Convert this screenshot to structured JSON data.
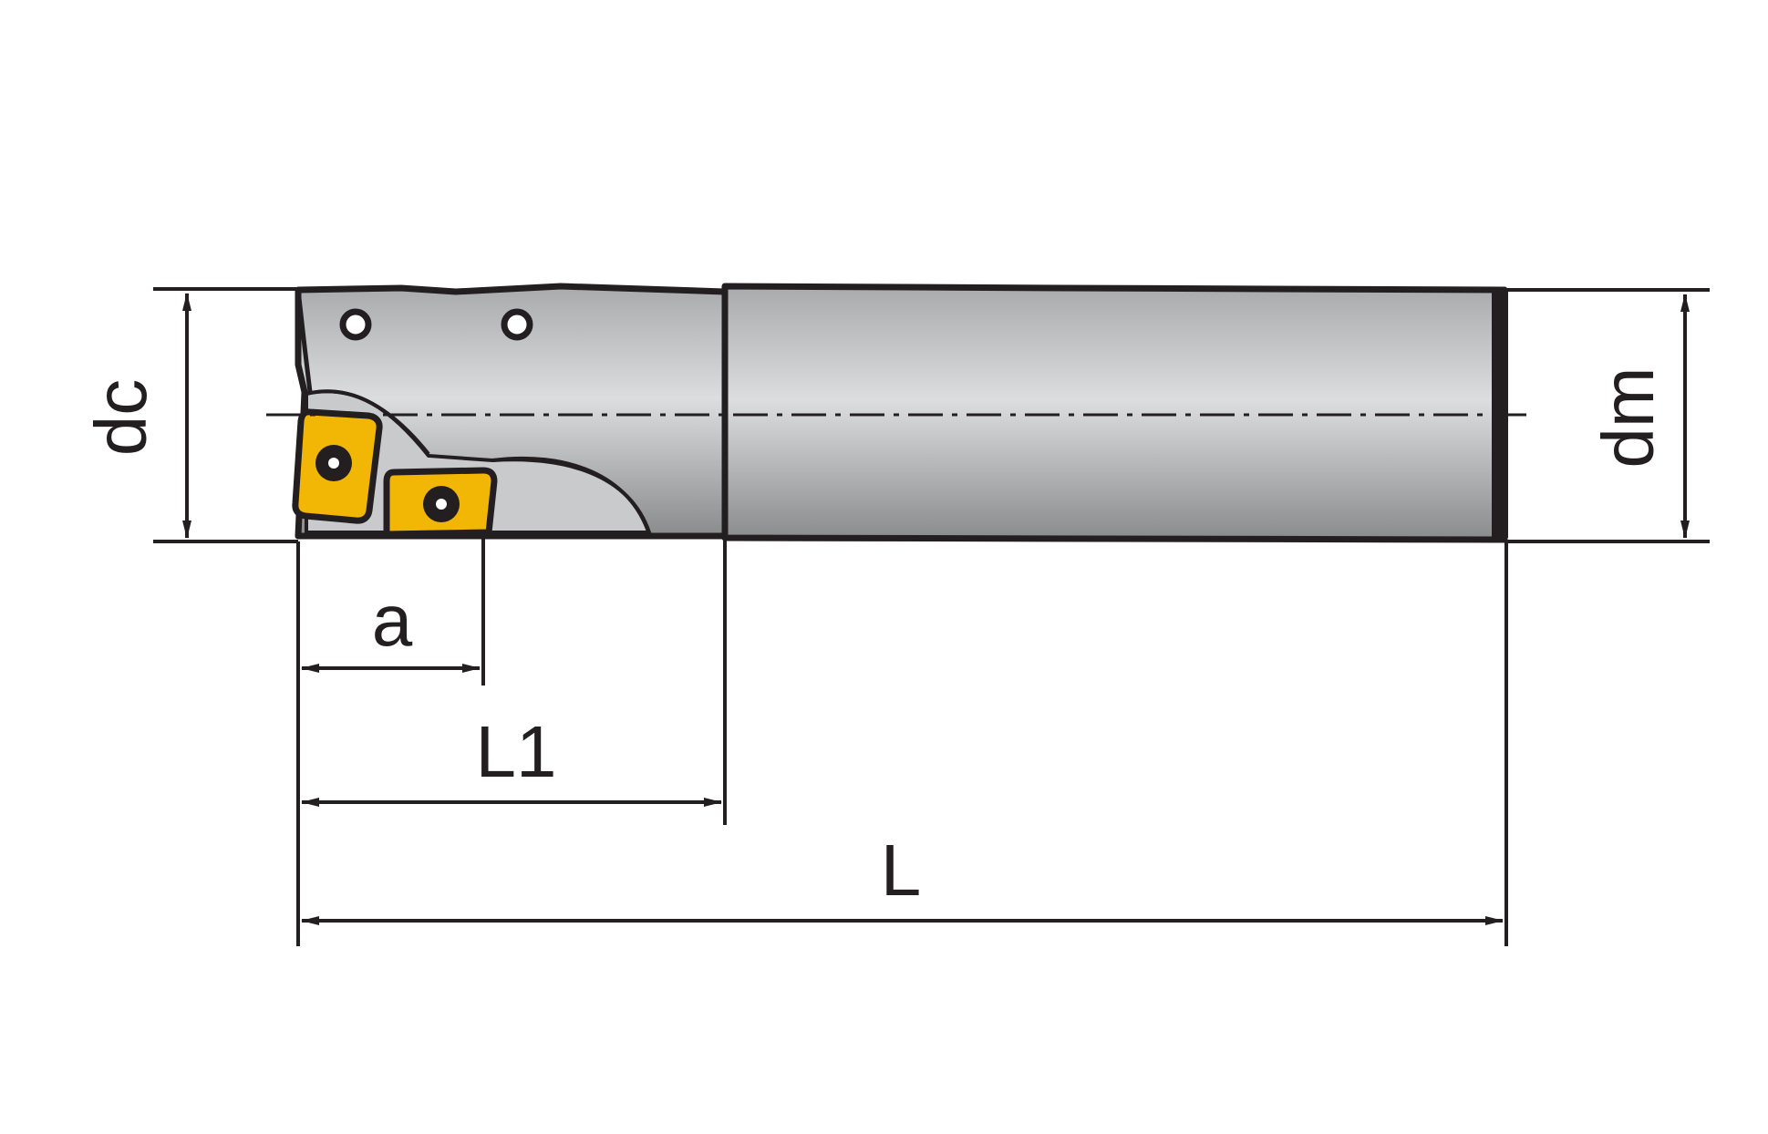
{
  "diagram": {
    "labels": {
      "dc": "dc",
      "dm": "dm",
      "a": "a",
      "L1": "L1",
      "L": "L"
    },
    "colors": {
      "line": "#231f20",
      "steel_light": "#d9dadb",
      "steel_dark": "#8e8f91",
      "insert": "#f2b705",
      "background": "#ffffff"
    }
  }
}
